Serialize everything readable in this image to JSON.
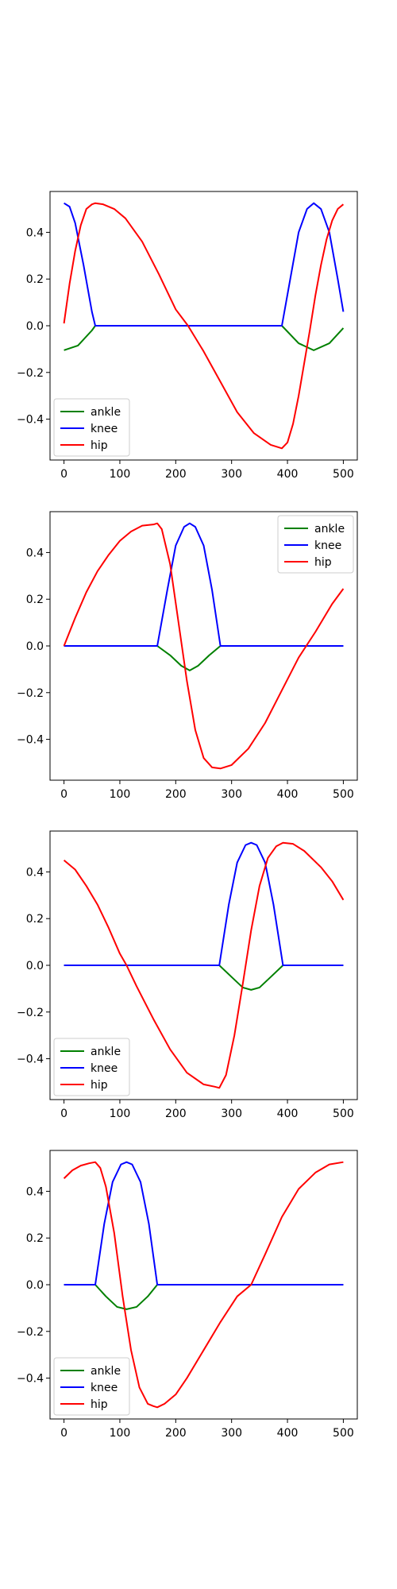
{
  "figure": {
    "joint_colors": {
      "ankle": "#008000",
      "knee": "#0000ff",
      "hip": "#ff0000"
    }
  },
  "chart_data": [
    {
      "type": "line",
      "xlim": [
        -25,
        525
      ],
      "ylim": [
        -0.575,
        0.575
      ],
      "xticks": [
        0,
        100,
        200,
        300,
        400,
        500
      ],
      "yticks": [
        0.4,
        0.2,
        0.0,
        -0.2,
        -0.4
      ],
      "xtick_labels": [
        "0",
        "100",
        "200",
        "300",
        "400",
        "500"
      ],
      "ytick_labels": [
        "0.4",
        "0.2",
        "0.0",
        "−0.2",
        "−0.4"
      ],
      "grid": false,
      "legend": {
        "loc": "lower-left",
        "entries": [
          "ankle",
          "knee",
          "hip"
        ]
      },
      "series": [
        {
          "name": "ankle",
          "color": "#008000",
          "x": [
            0,
            25,
            50,
            56,
            100,
            200,
            300,
            390,
            420,
            447,
            475,
            500
          ],
          "y": [
            -0.105,
            -0.085,
            -0.02,
            0.0,
            0.0,
            0.0,
            0.0,
            0.0,
            -0.075,
            -0.105,
            -0.075,
            -0.01
          ]
        },
        {
          "name": "knee",
          "color": "#0000ff",
          "x": [
            0,
            10,
            20,
            35,
            50,
            56,
            100,
            200,
            300,
            390,
            405,
            420,
            435,
            447,
            460,
            475,
            490,
            500
          ],
          "y": [
            0.525,
            0.51,
            0.44,
            0.26,
            0.06,
            0.0,
            0.0,
            0.0,
            0.0,
            0.0,
            0.2,
            0.4,
            0.5,
            0.525,
            0.5,
            0.4,
            0.2,
            0.06
          ]
        },
        {
          "name": "hip",
          "color": "#ff0000",
          "x": [
            0,
            10,
            20,
            30,
            40,
            50,
            56,
            70,
            90,
            110,
            140,
            170,
            200,
            222,
            250,
            280,
            310,
            340,
            370,
            390,
            400,
            410,
            420,
            430,
            440,
            450,
            460,
            470,
            480,
            490,
            500
          ],
          "y": [
            0.01,
            0.18,
            0.32,
            0.43,
            0.5,
            0.52,
            0.525,
            0.52,
            0.5,
            0.46,
            0.36,
            0.22,
            0.07,
            0.0,
            -0.11,
            -0.24,
            -0.37,
            -0.46,
            -0.51,
            -0.525,
            -0.5,
            -0.42,
            -0.3,
            -0.16,
            -0.02,
            0.13,
            0.26,
            0.37,
            0.45,
            0.5,
            0.52
          ]
        }
      ]
    },
    {
      "type": "line",
      "xlim": [
        -25,
        525
      ],
      "ylim": [
        -0.575,
        0.575
      ],
      "xticks": [
        0,
        100,
        200,
        300,
        400,
        500
      ],
      "yticks": [
        0.4,
        0.2,
        0.0,
        -0.2,
        -0.4
      ],
      "xtick_labels": [
        "0",
        "100",
        "200",
        "300",
        "400",
        "500"
      ],
      "ytick_labels": [
        "0.4",
        "0.2",
        "0.0",
        "−0.2",
        "−0.4"
      ],
      "grid": false,
      "legend": {
        "loc": "upper-right",
        "entries": [
          "ankle",
          "knee",
          "hip"
        ]
      },
      "series": [
        {
          "name": "ankle",
          "color": "#008000",
          "x": [
            0,
            100,
            167,
            190,
            210,
            225,
            240,
            260,
            280,
            400,
            500
          ],
          "y": [
            0.0,
            0.0,
            0.0,
            -0.04,
            -0.085,
            -0.105,
            -0.085,
            -0.04,
            0.0,
            0.0,
            0.0
          ]
        },
        {
          "name": "knee",
          "color": "#0000ff",
          "x": [
            0,
            100,
            167,
            185,
            200,
            215,
            225,
            235,
            250,
            265,
            280,
            400,
            500
          ],
          "y": [
            0.0,
            0.0,
            0.0,
            0.24,
            0.43,
            0.51,
            0.525,
            0.51,
            0.43,
            0.24,
            0.0,
            0.0,
            0.0
          ]
        },
        {
          "name": "hip",
          "color": "#ff0000",
          "x": [
            0,
            20,
            40,
            60,
            80,
            100,
            120,
            140,
            160,
            167,
            175,
            190,
            205,
            220,
            235,
            250,
            265,
            280,
            300,
            330,
            360,
            390,
            420,
            450,
            480,
            500
          ],
          "y": [
            0.0,
            0.12,
            0.23,
            0.32,
            0.39,
            0.45,
            0.49,
            0.515,
            0.52,
            0.525,
            0.5,
            0.35,
            0.1,
            -0.15,
            -0.36,
            -0.48,
            -0.52,
            -0.525,
            -0.51,
            -0.44,
            -0.33,
            -0.19,
            -0.05,
            0.06,
            0.18,
            0.245
          ]
        }
      ]
    },
    {
      "type": "line",
      "xlim": [
        -25,
        525
      ],
      "ylim": [
        -0.575,
        0.575
      ],
      "xticks": [
        0,
        100,
        200,
        300,
        400,
        500
      ],
      "yticks": [
        0.4,
        0.2,
        0.0,
        -0.2,
        -0.4
      ],
      "xtick_labels": [
        "0",
        "100",
        "200",
        "300",
        "400",
        "500"
      ],
      "ytick_labels": [
        "0.4",
        "0.2",
        "0.0",
        "−0.2",
        "−0.4"
      ],
      "grid": false,
      "legend": {
        "loc": "lower-left",
        "entries": [
          "ankle",
          "knee",
          "hip"
        ]
      },
      "series": [
        {
          "name": "ankle",
          "color": "#008000",
          "x": [
            0,
            100,
            200,
            278,
            300,
            320,
            335,
            350,
            370,
            392,
            450,
            500
          ],
          "y": [
            0.0,
            0.0,
            0.0,
            0.0,
            -0.05,
            -0.095,
            -0.105,
            -0.095,
            -0.05,
            0.0,
            0.0,
            0.0
          ]
        },
        {
          "name": "knee",
          "color": "#0000ff",
          "x": [
            0,
            100,
            200,
            278,
            295,
            310,
            325,
            335,
            345,
            360,
            375,
            392,
            450,
            500
          ],
          "y": [
            0.0,
            0.0,
            0.0,
            0.0,
            0.26,
            0.44,
            0.515,
            0.525,
            0.515,
            0.44,
            0.26,
            0.0,
            0.0,
            0.0
          ]
        },
        {
          "name": "hip",
          "color": "#ff0000",
          "x": [
            0,
            20,
            40,
            60,
            80,
            100,
            112,
            130,
            160,
            190,
            220,
            250,
            270,
            278,
            290,
            305,
            320,
            335,
            350,
            365,
            380,
            392,
            410,
            430,
            460,
            480,
            500
          ],
          "y": [
            0.45,
            0.41,
            0.34,
            0.26,
            0.16,
            0.05,
            0.0,
            -0.09,
            -0.23,
            -0.36,
            -0.46,
            -0.51,
            -0.52,
            -0.525,
            -0.47,
            -0.3,
            -0.08,
            0.15,
            0.34,
            0.46,
            0.51,
            0.525,
            0.52,
            0.49,
            0.42,
            0.36,
            0.28
          ]
        }
      ]
    },
    {
      "type": "line",
      "xlim": [
        -25,
        525
      ],
      "ylim": [
        -0.575,
        0.575
      ],
      "xticks": [
        0,
        100,
        200,
        300,
        400,
        500
      ],
      "yticks": [
        0.4,
        0.2,
        0.0,
        -0.2,
        -0.4
      ],
      "xtick_labels": [
        "0",
        "100",
        "200",
        "300",
        "400",
        "500"
      ],
      "ytick_labels": [
        "0.4",
        "0.2",
        "0.0",
        "−0.2",
        "−0.4"
      ],
      "grid": false,
      "legend": {
        "loc": "lower-left",
        "entries": [
          "ankle",
          "knee",
          "hip"
        ]
      },
      "series": [
        {
          "name": "ankle",
          "color": "#008000",
          "x": [
            0,
            40,
            56,
            75,
            95,
            112,
            130,
            150,
            167,
            250,
            350,
            500
          ],
          "y": [
            0.0,
            0.0,
            0.0,
            -0.05,
            -0.095,
            -0.105,
            -0.095,
            -0.05,
            0.0,
            0.0,
            0.0,
            0.0
          ]
        },
        {
          "name": "knee",
          "color": "#0000ff",
          "x": [
            0,
            40,
            56,
            72,
            87,
            102,
            112,
            122,
            137,
            152,
            167,
            250,
            350,
            500
          ],
          "y": [
            0.0,
            0.0,
            0.0,
            0.26,
            0.44,
            0.515,
            0.525,
            0.515,
            0.44,
            0.26,
            0.0,
            0.0,
            0.0,
            0.0
          ]
        },
        {
          "name": "hip",
          "color": "#ff0000",
          "x": [
            0,
            15,
            30,
            45,
            56,
            65,
            75,
            90,
            105,
            120,
            135,
            150,
            160,
            167,
            180,
            200,
            220,
            250,
            280,
            310,
            335,
            360,
            390,
            420,
            450,
            475,
            500
          ],
          "y": [
            0.455,
            0.49,
            0.51,
            0.52,
            0.525,
            0.5,
            0.42,
            0.22,
            -0.05,
            -0.28,
            -0.44,
            -0.51,
            -0.52,
            -0.525,
            -0.51,
            -0.47,
            -0.4,
            -0.28,
            -0.16,
            -0.05,
            0.0,
            0.13,
            0.29,
            0.41,
            0.48,
            0.515,
            0.525
          ]
        }
      ]
    }
  ]
}
